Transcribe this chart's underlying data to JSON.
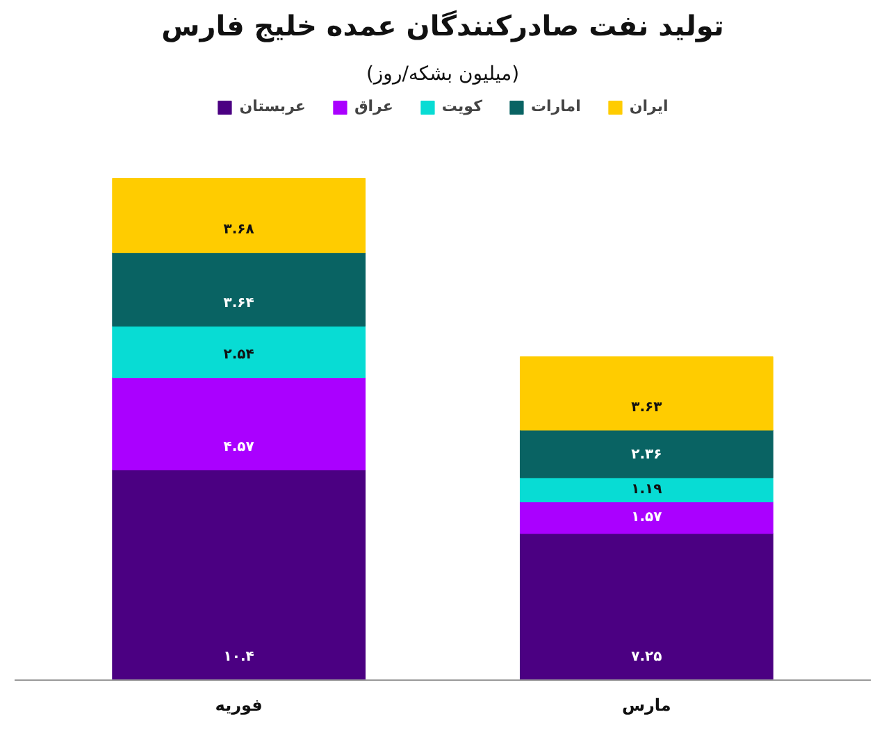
{
  "chart_data": {
    "type": "bar",
    "title": "تولید نفت صادرکنندگان عمده خلیج فارس",
    "subtitle": "(میلیون بشکه/روز)",
    "categories": [
      "فوریه",
      "مارس"
    ],
    "stacked": true,
    "legend": "top",
    "series": [
      {
        "name": "عربستان",
        "color": "#4b0082",
        "values": [
          10.4,
          7.25
        ],
        "value_labels": [
          "۱۰.۴",
          "۷.۲۵"
        ]
      },
      {
        "name": "عراق",
        "color": "#aa00ff",
        "values": [
          4.57,
          1.57
        ],
        "value_labels": [
          "۴.۵۷",
          "۱.۵۷"
        ]
      },
      {
        "name": "کویت",
        "color": "#08dcd4",
        "values": [
          2.54,
          1.19
        ],
        "value_labels": [
          "۲.۵۴",
          "۱.۱۹"
        ]
      },
      {
        "name": "امارات",
        "color": "#096363",
        "values": [
          3.64,
          2.36
        ],
        "value_labels": [
          "۳.۶۴",
          "۲.۳۶"
        ]
      },
      {
        "name": "ایران",
        "color": "#ffcc00",
        "values": [
          3.68,
          3.63
        ],
        "value_labels": [
          "۳.۶۸",
          "۳.۶۳"
        ]
      }
    ]
  }
}
